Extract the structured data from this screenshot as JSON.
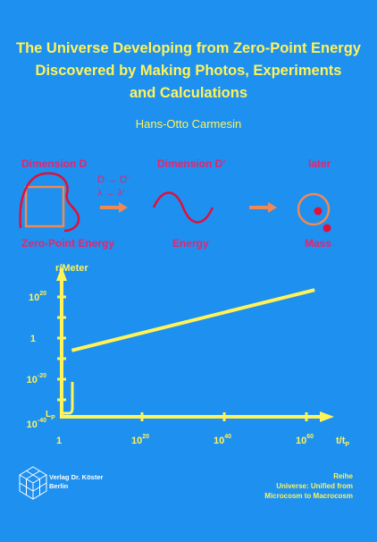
{
  "book": {
    "title_lines": [
      "The Universe Developing from Zero-Point Energy",
      "Discovered by Making Photos, Experiments",
      "and Calculations"
    ],
    "author": "Hans-Otto Carmesin"
  },
  "diagram": {
    "dim_d": "Dimension D",
    "dim_d_prime": "Dimension D'",
    "later": "later",
    "eq_d": "D → D'",
    "eq_lambda": "λ → λ'",
    "zero_point": "Zero-Point Energy",
    "energy": "Energy",
    "mass": "Mass"
  },
  "chart": {
    "y_axis_label": "r/Meter",
    "x_axis_label": "t/t",
    "x_axis_sub": "P",
    "lp_label": "L",
    "lp_sub": "P"
  },
  "chart_data": {
    "type": "line",
    "xlabel": "t/tP",
    "ylabel": "r/Meter",
    "x_scale": "log",
    "y_scale": "log",
    "x_ticks": [
      {
        "base": "1",
        "exp": ""
      },
      {
        "base": "10",
        "exp": "20"
      },
      {
        "base": "10",
        "exp": "40"
      },
      {
        "base": "10",
        "exp": "60"
      }
    ],
    "y_ticks": [
      {
        "base": "10",
        "exp": "-40"
      },
      {
        "base": "10",
        "exp": "-20"
      },
      {
        "base": "1",
        "exp": ""
      },
      {
        "base": "10",
        "exp": "20"
      }
    ],
    "xlim": [
      1,
      1e+63
    ],
    "ylim": [
      1e-40,
      1e+24
    ],
    "series": [
      {
        "x": [
          2.0,
          1e+62
        ],
        "y": [
          1e-06,
          1e+26
        ]
      }
    ],
    "color": "#fff35a"
  },
  "publisher": {
    "name_line1": "Verlag Dr. Köster",
    "name_line2": "Berlin"
  },
  "series_info": {
    "label": "Reihe",
    "line1": "Universe: Unified from",
    "line2": "Microcosm to Macrocosm"
  },
  "colors": {
    "background": "#1e90ef",
    "title": "#fff35a",
    "magenta": "#e8236e",
    "orange": "#ee8a55",
    "red": "#e0103a"
  }
}
